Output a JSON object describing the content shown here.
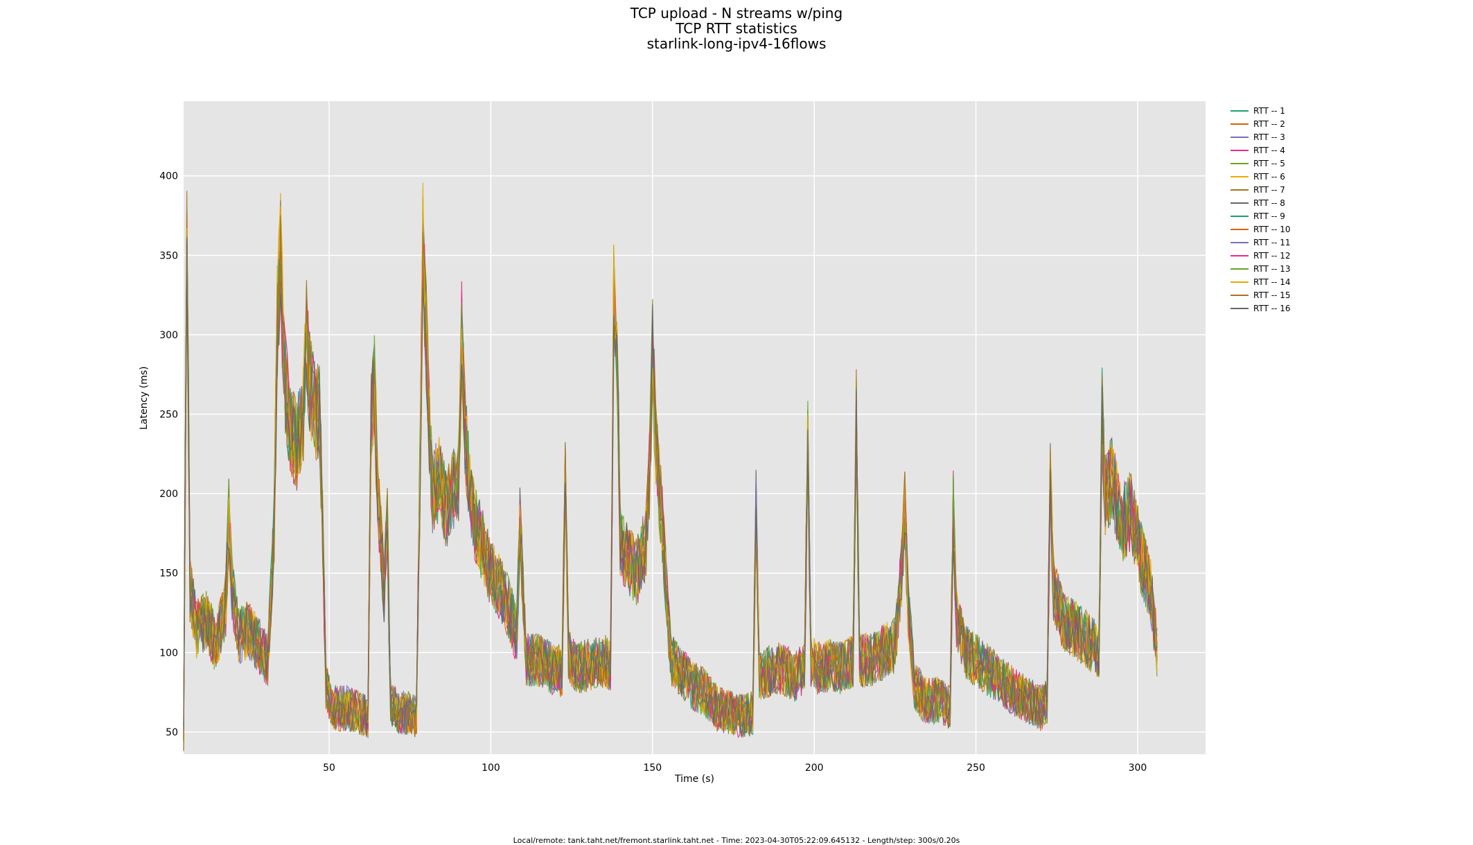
{
  "titles": [
    "TCP upload - N streams w/ping",
    "TCP RTT statistics",
    "starlink-long-ipv4-16flows"
  ],
  "footer": "Local/remote: tank.taht.net/fremont.starlink.taht.net - Time: 2023-04-30T05:22:09.645132 - Length/step: 300s/0.20s",
  "chart_data": {
    "type": "line",
    "title": "TCP upload - N streams w/ping",
    "subtitle": "TCP RTT statistics",
    "xlabel": "Time (s)",
    "ylabel": "Latency (ms)",
    "xlim": [
      5,
      321
    ],
    "ylim": [
      36,
      447
    ],
    "xticks": [
      50,
      100,
      150,
      200,
      250,
      300
    ],
    "yticks": [
      50,
      100,
      150,
      200,
      250,
      300,
      350,
      400
    ],
    "grid": true,
    "legend_position": "right-top",
    "x_step": 1,
    "x_start": 5,
    "series_spread_ms": 22,
    "envelope_x": [
      5,
      6,
      7,
      9,
      12,
      15,
      18,
      19,
      20,
      22,
      25,
      28,
      31,
      33,
      34,
      35,
      36,
      38,
      40,
      42,
      43,
      44,
      46,
      47,
      48,
      49,
      51,
      55,
      59,
      62,
      63,
      64,
      65,
      67,
      68,
      69,
      71,
      75,
      77,
      78,
      79,
      80,
      81,
      82,
      84,
      86,
      88,
      90,
      91,
      92,
      94,
      97,
      100,
      103,
      106,
      108,
      109,
      111,
      115,
      119,
      122,
      123,
      124,
      126,
      130,
      134,
      137,
      138,
      139,
      140,
      142,
      145,
      148,
      149,
      150,
      151,
      153,
      155,
      156,
      158,
      162,
      166,
      170,
      174,
      178,
      181,
      182,
      183,
      186,
      190,
      194,
      197,
      198,
      199,
      201,
      205,
      209,
      212,
      213,
      214,
      217,
      221,
      225,
      227,
      228,
      229,
      231,
      234,
      238,
      242,
      243,
      244,
      247,
      250,
      253,
      256,
      259,
      262,
      266,
      270,
      272,
      273,
      274,
      277,
      280,
      283,
      286,
      288,
      289,
      290,
      292,
      295,
      298,
      301,
      304,
      306
    ],
    "envelope_y": [
      50,
      360,
      140,
      115,
      120,
      105,
      130,
      185,
      140,
      110,
      115,
      105,
      95,
      180,
      310,
      350,
      280,
      240,
      230,
      250,
      300,
      270,
      250,
      255,
      180,
      80,
      65,
      65,
      62,
      60,
      250,
      270,
      200,
      140,
      180,
      70,
      62,
      62,
      60,
      200,
      360,
      300,
      240,
      200,
      210,
      190,
      200,
      210,
      300,
      240,
      190,
      170,
      150,
      140,
      125,
      110,
      180,
      95,
      95,
      90,
      88,
      210,
      100,
      90,
      92,
      95,
      93,
      320,
      300,
      170,
      160,
      150,
      170,
      210,
      290,
      230,
      180,
      115,
      95,
      90,
      80,
      75,
      65,
      62,
      60,
      62,
      190,
      85,
      88,
      90,
      85,
      90,
      230,
      95,
      90,
      92,
      90,
      95,
      250,
      95,
      95,
      100,
      105,
      150,
      190,
      130,
      80,
      70,
      70,
      65,
      190,
      120,
      100,
      95,
      90,
      85,
      80,
      75,
      70,
      65,
      70,
      210,
      140,
      120,
      115,
      110,
      105,
      100,
      250,
      200,
      210,
      180,
      190,
      160,
      140,
      100
    ],
    "series": [
      {
        "name": "RTT -- 1",
        "color": "#1b9e77"
      },
      {
        "name": "RTT -- 2",
        "color": "#d95f02"
      },
      {
        "name": "RTT -- 3",
        "color": "#7570b3"
      },
      {
        "name": "RTT -- 4",
        "color": "#e7298a"
      },
      {
        "name": "RTT -- 5",
        "color": "#66a61e"
      },
      {
        "name": "RTT -- 6",
        "color": "#e6ab02"
      },
      {
        "name": "RTT -- 7",
        "color": "#a6761d"
      },
      {
        "name": "RTT -- 8",
        "color": "#666666"
      },
      {
        "name": "RTT -- 9",
        "color": "#1b9e77"
      },
      {
        "name": "RTT -- 10",
        "color": "#d95f02"
      },
      {
        "name": "RTT -- 11",
        "color": "#7570b3"
      },
      {
        "name": "RTT -- 12",
        "color": "#e7298a"
      },
      {
        "name": "RTT -- 13",
        "color": "#66a61e"
      },
      {
        "name": "RTT -- 14",
        "color": "#e6ab02"
      },
      {
        "name": "RTT -- 15",
        "color": "#a6761d"
      },
      {
        "name": "RTT -- 16",
        "color": "#666666"
      }
    ]
  }
}
